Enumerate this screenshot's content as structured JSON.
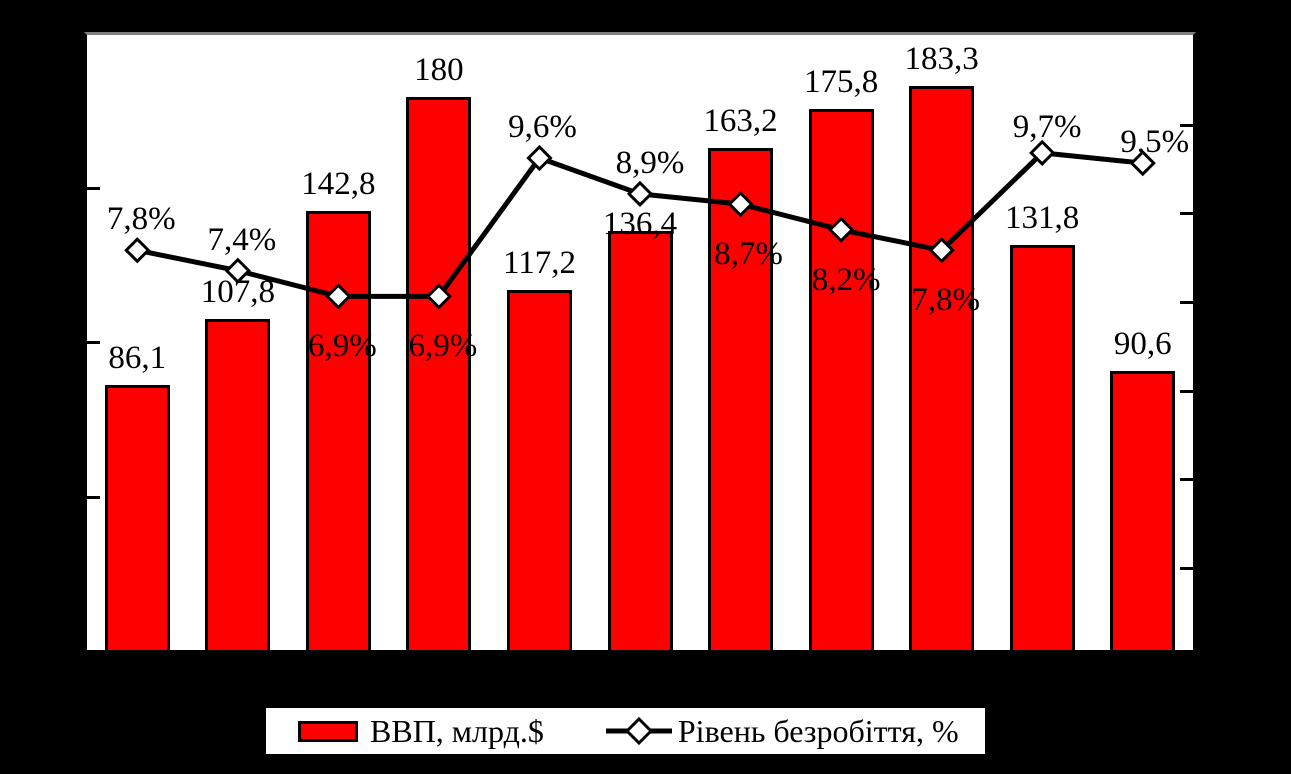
{
  "chart_data": {
    "type": "combo",
    "title": "",
    "categories_visible": false,
    "series": [
      {
        "name": "ВВП, млрд.$",
        "type": "bar",
        "axis": "left",
        "color": "#ff0000",
        "values": [
          86.1,
          107.8,
          142.8,
          180,
          117.2,
          136.4,
          163.2,
          175.8,
          183.3,
          131.8,
          90.6
        ],
        "labels": [
          "86,1",
          "107,8",
          "142,8",
          "180",
          "117,2",
          "136,4",
          "163,2",
          "175,8",
          "183,3",
          "131,8",
          "90,6"
        ],
        "label_dy": [
          0,
          0,
          0,
          0,
          0,
          20,
          0,
          0,
          0,
          0,
          0
        ]
      },
      {
        "name": "Рівень безробіття, %",
        "type": "line",
        "axis": "right",
        "color": "#000000",
        "marker": "diamond",
        "marker_fill": "#ffffff",
        "values": [
          7.8,
          7.4,
          6.9,
          6.9,
          9.6,
          8.9,
          8.7,
          8.2,
          7.8,
          9.7,
          9.5
        ],
        "labels": [
          "7,8%",
          "7,4%",
          "6,9%",
          "6,9%",
          "9,6%",
          "8,9%",
          "8,7%",
          "8,2%",
          "7,8%",
          "9,7%",
          "9,5%"
        ],
        "label_pos": [
          "above",
          "above",
          "below",
          "below",
          "above",
          "above",
          "below",
          "below",
          "below",
          "above",
          "above"
        ],
        "label_dx": [
          4,
          4,
          4,
          4,
          3,
          10,
          8,
          5,
          4,
          5,
          12
        ],
        "label_dy": [
          0,
          0,
          0,
          0,
          0,
          0,
          0,
          0,
          0,
          5,
          10
        ]
      }
    ],
    "axes": {
      "left": {
        "min": 0,
        "max": 200,
        "tick_labels_visible": false
      },
      "right": {
        "min": 0,
        "max": 12,
        "tick_labels_visible": false
      },
      "x": {
        "tick_labels_visible": false
      }
    },
    "legend": {
      "position": "bottom",
      "items": [
        "ВВП, млрд.$",
        "Рівень безробіття, %"
      ]
    }
  },
  "colors": {
    "background": "#000000",
    "plot_background": "#ffffff",
    "bar_fill": "#ff0000",
    "stroke": "#000000",
    "plot_top_border": "#808080"
  }
}
